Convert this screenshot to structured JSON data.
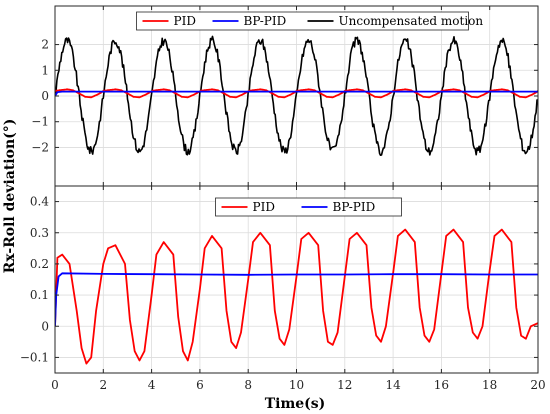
{
  "figure": {
    "xlabel": "Time(s)",
    "ylabel": "Rx-Roll deviation(°)"
  },
  "chart_data": [
    {
      "type": "line",
      "panel": "top",
      "xlim": [
        0,
        20
      ],
      "ylim": [
        -3.5,
        3.5
      ],
      "xticks": [
        0,
        2,
        4,
        6,
        8,
        10,
        12,
        14,
        16,
        18,
        20
      ],
      "yticks": [
        -2,
        -1,
        0,
        1,
        2
      ],
      "grid": true,
      "legend_position": "top-center",
      "series": [
        {
          "name": "PID",
          "color": "#ff0000",
          "period": 2.0,
          "x": [
            0,
            0.25,
            0.5,
            0.75,
            1.0,
            1.25,
            1.5,
            1.75,
            2.0
          ],
          "y": [
            0.2,
            0.23,
            0.26,
            0.22,
            0.1,
            -0.03,
            -0.05,
            0.05,
            0.18
          ],
          "x_end": 20
        },
        {
          "name": "BP-PID",
          "color": "#0000ff",
          "x": [
            0,
            0.1,
            0.3,
            20
          ],
          "y": [
            0.0,
            0.15,
            0.17,
            0.17
          ]
        },
        {
          "name": "Uncompensated motion",
          "color": "#000000",
          "period": 2.0,
          "x": [
            0,
            0.25,
            0.5,
            0.75,
            1.0,
            1.25,
            1.5,
            1.75,
            2.0
          ],
          "y": [
            0.0,
            1.5,
            2.15,
            1.5,
            0.0,
            -1.5,
            -2.15,
            -1.5,
            0.0
          ],
          "x_end": 20
        }
      ]
    },
    {
      "type": "line",
      "panel": "bottom",
      "xlim": [
        0,
        20
      ],
      "ylim": [
        -0.15,
        0.45
      ],
      "xticks": [
        0,
        2,
        4,
        6,
        8,
        10,
        12,
        14,
        16,
        18,
        20
      ],
      "yticks": [
        -0.1,
        0,
        0.1,
        0.2,
        0.3,
        0.4
      ],
      "ytick_labels": [
        "-0.1",
        "0",
        "0.1",
        "0.2",
        "0.3",
        "0.4"
      ],
      "xtick_labels": [
        "0",
        "2",
        "4",
        "6",
        "8",
        "10",
        "12",
        "14",
        "16",
        "18",
        "20"
      ],
      "grid": true,
      "legend_position": "top-center",
      "series": [
        {
          "name": "PID",
          "color": "#ff0000",
          "x": [
            0,
            0.1,
            0.3,
            0.6,
            0.9,
            1.1,
            1.3,
            1.5,
            1.7,
            2.0,
            2.2,
            2.5,
            2.9,
            3.1,
            3.3,
            3.5,
            3.7,
            4.0,
            4.2,
            4.5,
            4.9,
            5.1,
            5.3,
            5.5,
            5.7,
            6.0,
            6.2,
            6.5,
            6.9,
            7.1,
            7.3,
            7.5,
            7.7,
            8.0,
            8.2,
            8.5,
            8.9,
            9.1,
            9.3,
            9.5,
            9.7,
            10.0,
            10.2,
            10.5,
            10.9,
            11.1,
            11.3,
            11.5,
            11.7,
            12.0,
            12.2,
            12.5,
            12.9,
            13.1,
            13.3,
            13.5,
            13.7,
            14.0,
            14.2,
            14.5,
            14.9,
            15.1,
            15.3,
            15.5,
            15.7,
            16.0,
            16.2,
            16.5,
            16.9,
            17.1,
            17.3,
            17.5,
            17.7,
            18.0,
            18.2,
            18.5,
            18.9,
            19.1,
            19.3,
            19.5,
            19.7,
            20.0
          ],
          "y": [
            0.0,
            0.22,
            0.23,
            0.2,
            0.05,
            -0.07,
            -0.12,
            -0.1,
            0.05,
            0.2,
            0.25,
            0.26,
            0.2,
            0.02,
            -0.08,
            -0.11,
            -0.08,
            0.1,
            0.23,
            0.27,
            0.23,
            0.03,
            -0.08,
            -0.11,
            -0.05,
            0.12,
            0.25,
            0.29,
            0.25,
            0.05,
            -0.05,
            -0.07,
            -0.02,
            0.15,
            0.27,
            0.3,
            0.26,
            0.05,
            -0.04,
            -0.06,
            -0.01,
            0.16,
            0.28,
            0.3,
            0.26,
            0.05,
            -0.05,
            -0.06,
            -0.02,
            0.16,
            0.28,
            0.3,
            0.26,
            0.06,
            -0.03,
            -0.05,
            0.0,
            0.17,
            0.29,
            0.31,
            0.27,
            0.06,
            -0.03,
            -0.05,
            -0.01,
            0.17,
            0.29,
            0.31,
            0.27,
            0.06,
            -0.02,
            -0.04,
            0.0,
            0.18,
            0.29,
            0.31,
            0.27,
            0.06,
            -0.03,
            -0.04,
            0.0,
            0.01
          ]
        },
        {
          "name": "BP-PID",
          "color": "#0000ff",
          "x": [
            0,
            0.05,
            0.15,
            0.3,
            2,
            4,
            6,
            8,
            10,
            12,
            14,
            16,
            18,
            20
          ],
          "y": [
            0.0,
            0.1,
            0.16,
            0.17,
            0.168,
            0.167,
            0.166,
            0.165,
            0.166,
            0.166,
            0.167,
            0.167,
            0.166,
            0.166
          ]
        }
      ]
    }
  ]
}
